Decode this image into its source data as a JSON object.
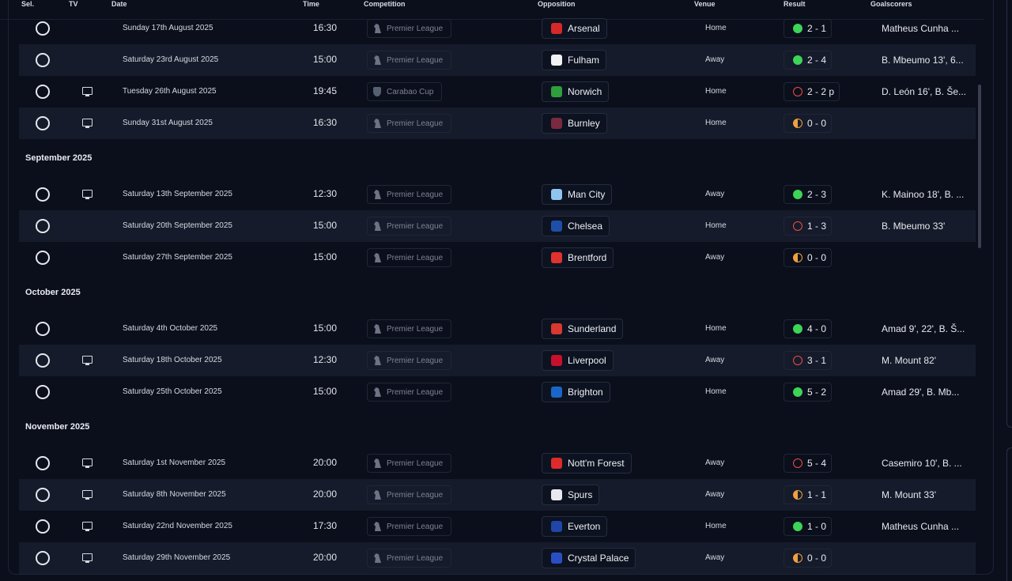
{
  "columns": {
    "sel": "Sel.",
    "tv": "TV",
    "date": "Date",
    "time": "Time",
    "competition": "Competition",
    "opposition": "Opposition",
    "venue": "Venue",
    "result": "Result",
    "goalscorers": "Goalscorers"
  },
  "colors": {
    "win": "#3dd457",
    "loss": "#ef4d43",
    "draw": "#f0a040",
    "background": "#0b0f1c"
  },
  "groups": [
    {
      "month": null,
      "fixtures": [
        {
          "tv": false,
          "date": "Sunday 17th August 2025",
          "time": "16:30",
          "competition": "Premier League",
          "comp_icon": "premier-league-icon",
          "opponent": "Arsenal",
          "crest_color": "#d62828",
          "venue": "Home",
          "outcome": "w",
          "score": "2 - 1",
          "scorers": "Matheus Cunha ..."
        },
        {
          "tv": false,
          "date": "Saturday 23rd August 2025",
          "time": "15:00",
          "competition": "Premier League",
          "comp_icon": "premier-league-icon",
          "opponent": "Fulham",
          "crest_color": "#f2f2f2",
          "venue": "Away",
          "outcome": "w",
          "score": "2 - 4",
          "scorers": "B. Mbeumo 13', 6..."
        },
        {
          "tv": true,
          "date": "Tuesday 26th August 2025",
          "time": "19:45",
          "competition": "Carabao Cup",
          "comp_icon": "carabao-cup-icon",
          "opponent": "Norwich",
          "crest_color": "#2f9e3c",
          "venue": "Home",
          "outcome": "l",
          "score": "2 - 2 p",
          "scorers": "D. León 16', B. Še..."
        },
        {
          "tv": true,
          "date": "Sunday 31st August 2025",
          "time": "16:30",
          "competition": "Premier League",
          "comp_icon": "premier-league-icon",
          "opponent": "Burnley",
          "crest_color": "#7a2a40",
          "venue": "Home",
          "outcome": "d",
          "score": "0 - 0",
          "scorers": ""
        }
      ]
    },
    {
      "month": "September 2025",
      "fixtures": [
        {
          "tv": true,
          "date": "Saturday 13th September 2025",
          "time": "12:30",
          "competition": "Premier League",
          "comp_icon": "premier-league-icon",
          "opponent": "Man City",
          "crest_color": "#8ec5ee",
          "venue": "Away",
          "outcome": "w",
          "score": "2 - 3",
          "scorers": "K. Mainoo 18', B. ..."
        },
        {
          "tv": false,
          "date": "Saturday 20th September 2025",
          "time": "15:00",
          "competition": "Premier League",
          "comp_icon": "premier-league-icon",
          "opponent": "Chelsea",
          "crest_color": "#1e4fa8",
          "venue": "Home",
          "outcome": "l",
          "score": "1 - 3",
          "scorers": "B. Mbeumo 33'"
        },
        {
          "tv": false,
          "date": "Saturday 27th September 2025",
          "time": "15:00",
          "competition": "Premier League",
          "comp_icon": "premier-league-icon",
          "opponent": "Brentford",
          "crest_color": "#e0322e",
          "venue": "Away",
          "outcome": "d",
          "score": "0 - 0",
          "scorers": ""
        }
      ]
    },
    {
      "month": "October 2025",
      "fixtures": [
        {
          "tv": false,
          "date": "Saturday 4th October 2025",
          "time": "15:00",
          "competition": "Premier League",
          "comp_icon": "premier-league-icon",
          "opponent": "Sunderland",
          "crest_color": "#d8382f",
          "venue": "Home",
          "outcome": "w",
          "score": "4 - 0",
          "scorers": "Amad 9', 22', B. Š..."
        },
        {
          "tv": true,
          "date": "Saturday 18th October 2025",
          "time": "12:30",
          "competition": "Premier League",
          "comp_icon": "premier-league-icon",
          "opponent": "Liverpool",
          "crest_color": "#c8102e",
          "venue": "Away",
          "outcome": "l",
          "score": "3 - 1",
          "scorers": "M. Mount 82'"
        },
        {
          "tv": false,
          "date": "Saturday 25th October 2025",
          "time": "15:00",
          "competition": "Premier League",
          "comp_icon": "premier-league-icon",
          "opponent": "Brighton",
          "crest_color": "#1a66c8",
          "venue": "Home",
          "outcome": "w",
          "score": "5 - 2",
          "scorers": "Amad 29', B. Mb..."
        }
      ]
    },
    {
      "month": "November 2025",
      "fixtures": [
        {
          "tv": true,
          "date": "Saturday 1st November 2025",
          "time": "20:00",
          "competition": "Premier League",
          "comp_icon": "premier-league-icon",
          "opponent": "Nott'm Forest",
          "crest_color": "#dd2b2b",
          "venue": "Away",
          "outcome": "l",
          "score": "5 - 4",
          "scorers": "Casemiro 10', B. ..."
        },
        {
          "tv": true,
          "date": "Saturday 8th November 2025",
          "time": "20:00",
          "competition": "Premier League",
          "comp_icon": "premier-league-icon",
          "opponent": "Spurs",
          "crest_color": "#e8e8ee",
          "venue": "Away",
          "outcome": "d",
          "score": "1 - 1",
          "scorers": "M. Mount 33'"
        },
        {
          "tv": true,
          "date": "Saturday 22nd November 2025",
          "time": "17:30",
          "competition": "Premier League",
          "comp_icon": "premier-league-icon",
          "opponent": "Everton",
          "crest_color": "#2046a8",
          "venue": "Home",
          "outcome": "w",
          "score": "1 - 0",
          "scorers": "Matheus Cunha ..."
        },
        {
          "tv": true,
          "date": "Saturday 29th November 2025",
          "time": "20:00",
          "competition": "Premier League",
          "comp_icon": "premier-league-icon",
          "opponent": "Crystal Palace",
          "crest_color": "#2a4fc4",
          "venue": "Away",
          "outcome": "d",
          "score": "0 - 0",
          "scorers": ""
        }
      ]
    }
  ]
}
